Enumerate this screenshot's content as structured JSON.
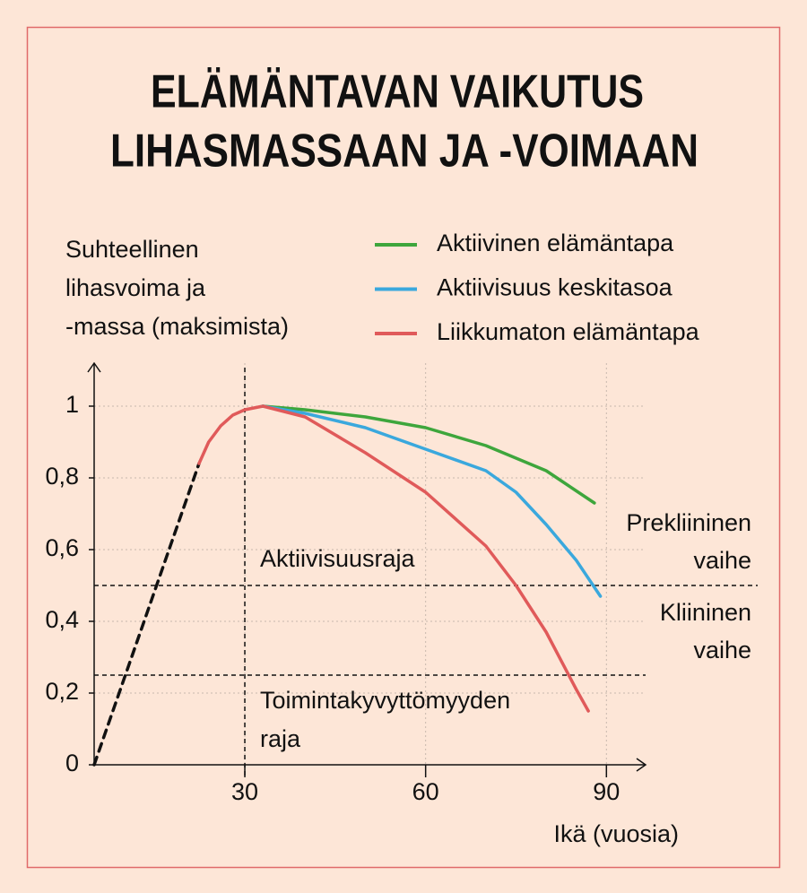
{
  "chart_data": {
    "type": "line",
    "title": [
      "ELÄMÄNTAVAN VAIKUTUS",
      "LIHASMASSAAN JA -VOIMAAN"
    ],
    "y_label": [
      "Suhteellinen",
      "lihasvoima ja",
      "-massa (maksimista)"
    ],
    "x_label": "Ikä (vuosia)",
    "xlim": [
      5,
      96.5
    ],
    "ylim": [
      0,
      1.12
    ],
    "xticks": [
      30,
      60,
      90
    ],
    "yticks": [
      0,
      {
        "value": 0.2,
        "label": "0,2"
      },
      {
        "value": 0.4,
        "label": "0,4"
      },
      {
        "value": 0.6,
        "label": "0,6"
      },
      {
        "value": 0.8,
        "label": "0,8"
      },
      1
    ],
    "grid": true,
    "vline": 30,
    "extrapolation": {
      "x": [
        5,
        22.4
      ],
      "values": [
        0,
        0.84
      ],
      "color": "#111111"
    },
    "common_curve": {
      "x": [
        22.4,
        24,
        26,
        28,
        30,
        33
      ],
      "values": [
        0.84,
        0.9,
        0.945,
        0.975,
        0.99,
        1
      ],
      "color": "#e05a5a"
    },
    "series": [
      {
        "name": "Aktiivinen elämäntapa",
        "color": "#3ea63c",
        "x": [
          33,
          40,
          50,
          60,
          70,
          80,
          88
        ],
        "values": [
          1,
          0.99,
          0.97,
          0.94,
          0.89,
          0.82,
          0.73
        ]
      },
      {
        "name": "Aktiivisuus keskitasoa",
        "color": "#3aa8dd",
        "x": [
          33,
          40,
          50,
          60,
          70,
          75,
          80,
          85,
          89
        ],
        "values": [
          1,
          0.98,
          0.94,
          0.88,
          0.82,
          0.76,
          0.67,
          0.57,
          0.47
        ]
      },
      {
        "name": "Liikkumaton elämäntapa",
        "color": "#e05a5a",
        "x": [
          33,
          40,
          50,
          60,
          70,
          75,
          80,
          85,
          87
        ],
        "values": [
          1,
          0.97,
          0.87,
          0.76,
          0.61,
          0.5,
          0.37,
          0.21,
          0.15
        ]
      }
    ],
    "thresholds": [
      {
        "value": 0.5,
        "label": [
          "Aktiivisuusraja"
        ]
      },
      {
        "value": 0.25,
        "label": [
          "Toimintakyvyttömyyden",
          "raja"
        ]
      }
    ],
    "zones": [
      {
        "label": [
          "Prekliininen",
          "vaihe"
        ]
      },
      {
        "label": [
          "Kliininen",
          "vaihe"
        ]
      }
    ]
  }
}
